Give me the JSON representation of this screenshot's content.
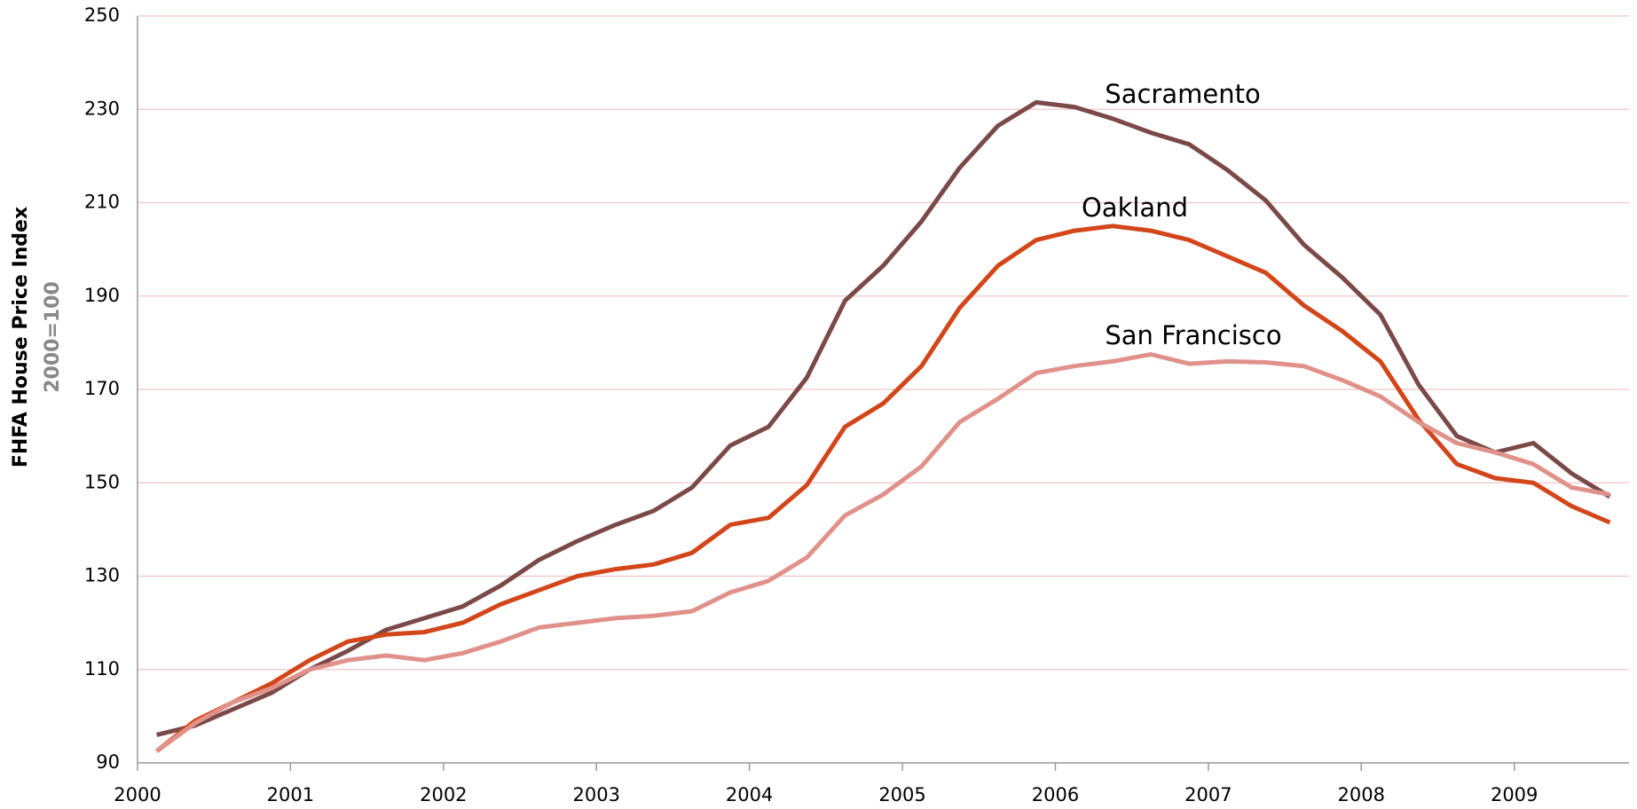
{
  "chart_data": {
    "type": "line",
    "y_label": "FHFA House Price Index",
    "y_sublabel": "2000=100",
    "x": [
      2000.125,
      2000.375,
      2000.625,
      2000.875,
      2001.125,
      2001.375,
      2001.625,
      2001.875,
      2002.125,
      2002.375,
      2002.625,
      2002.875,
      2003.125,
      2003.375,
      2003.625,
      2003.875,
      2004.125,
      2004.375,
      2004.625,
      2004.875,
      2005.125,
      2005.375,
      2005.625,
      2005.875,
      2006.125,
      2006.375,
      2006.625,
      2006.875,
      2007.125,
      2007.375,
      2007.625,
      2007.875,
      2008.125,
      2008.375,
      2008.625,
      2008.875,
      2009.125,
      2009.375,
      2009.625
    ],
    "series": [
      {
        "name": "Sacramento",
        "color": "#7b4a48",
        "values": [
          96,
          98,
          101.5,
          105,
          110,
          114,
          118.5,
          121,
          123.5,
          128,
          133.5,
          137.5,
          141,
          144,
          149,
          158,
          162,
          172.5,
          189,
          196.5,
          206,
          217.5,
          226.5,
          231.5,
          230.5,
          228,
          225,
          222.5,
          217,
          210.5,
          201,
          194,
          186,
          171,
          160,
          156.5,
          158.5,
          152,
          147
        ]
      },
      {
        "name": "Oakland",
        "color": "#d2461a",
        "values": [
          92.5,
          99,
          103,
          107,
          112,
          116,
          117.5,
          118,
          120,
          124,
          127,
          130,
          131.5,
          132.5,
          135,
          141,
          142.5,
          149.5,
          162,
          167,
          175,
          187.5,
          196.5,
          202,
          204,
          205,
          204,
          202,
          198.5,
          195,
          188,
          182.5,
          176,
          163.5,
          154,
          151,
          150,
          145,
          141.5
        ]
      },
      {
        "name": "San Francisco",
        "color": "#e0928a",
        "values": [
          92.5,
          98.5,
          103,
          106,
          110,
          112,
          113,
          112,
          113.5,
          116,
          119,
          120,
          121,
          121.5,
          122.5,
          126.5,
          129,
          134,
          143,
          147.5,
          153.5,
          163,
          168,
          173.5,
          175,
          176,
          177.5,
          175.5,
          176,
          175.8,
          175,
          172,
          168.5,
          163,
          158.5,
          156.5,
          154,
          149,
          147.5
        ]
      }
    ],
    "xlim": [
      2000,
      2009.75
    ],
    "xticks": [
      2000,
      2001,
      2002,
      2003,
      2004,
      2005,
      2006,
      2007,
      2008,
      2009
    ],
    "ylim": [
      90,
      250
    ],
    "yticks": [
      90,
      110,
      130,
      150,
      170,
      190,
      210,
      230,
      250
    ],
    "grid": true
  }
}
